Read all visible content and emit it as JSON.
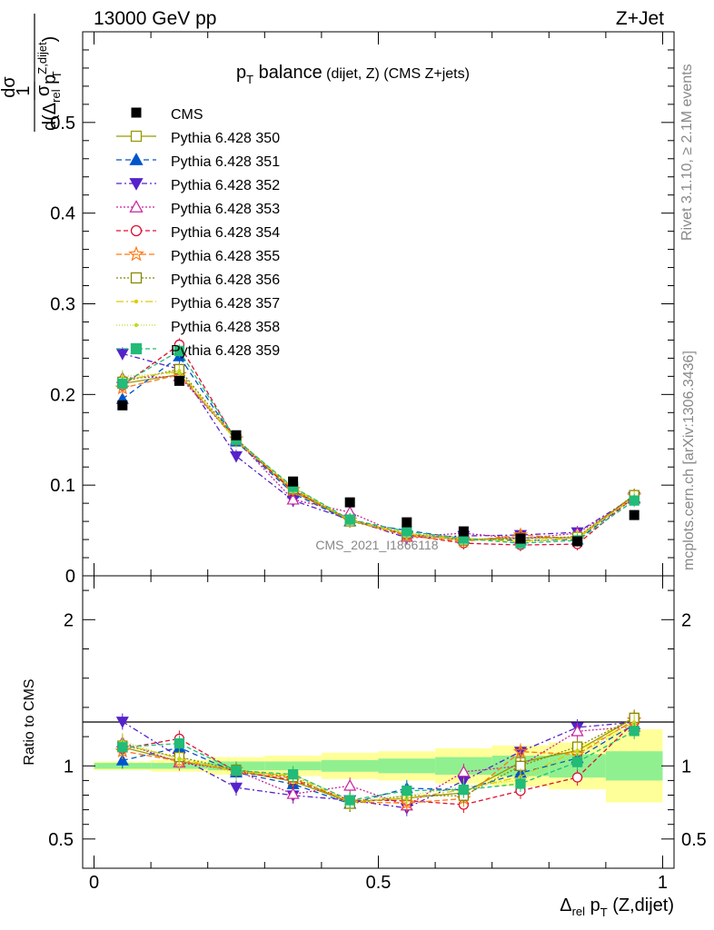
{
  "header": {
    "left": "13000 GeV pp",
    "right": "Z+Jet"
  },
  "plot_title": {
    "main": "p",
    "main_sub": "T",
    "rest": " balance",
    "small": " (dijet, Z) (CMS Z+jets)"
  },
  "ylabel": {
    "frac_top": "1",
    "frac_bottom": "σ",
    "d_sigma": "dσ",
    "d_prefix": "d(Δ",
    "d_sub": "rel",
    "d_p": " p",
    "d_sup": "Z,dijet",
    "d_psub": "T",
    "d_close": ")"
  },
  "ratio_ylabel": "Ratio to CMS",
  "xlabel": {
    "delta": "Δ",
    "sub": "rel",
    "p": " p",
    "psub": "T",
    "rest": " (Z,dijet)"
  },
  "side_texts": {
    "rivet": "Rivet 3.1.10, ≥ 2.1M events",
    "mcplots": "mcplots.cern.ch [arXiv:1306.3436]"
  },
  "watermark": "CMS_2021_I1866118",
  "colors": {
    "cms": "#000000",
    "band_inner": "#90f090",
    "band_outer": "#ffff99"
  },
  "chart_data": {
    "type": "scatter",
    "x": [
      0.05,
      0.15,
      0.25,
      0.35,
      0.45,
      0.55,
      0.65,
      0.75,
      0.85,
      0.95
    ],
    "xlim": [
      -0.02,
      1.02
    ],
    "xticks": [
      "0",
      "0.5",
      "1"
    ],
    "main_ylim": [
      0,
      0.6
    ],
    "main_yticks": [
      "0",
      "0.1",
      "0.2",
      "0.3",
      "0.4",
      "0.5"
    ],
    "ratio_ylim": [
      0.3,
      2.3
    ],
    "ratio_yticks": [
      "0.5",
      "1",
      "2"
    ],
    "cms": [
      0.188,
      0.215,
      0.155,
      0.104,
      0.081,
      0.059,
      0.049,
      0.041,
      0.038,
      0.067
    ],
    "ratio_band_inner": [
      0.02,
      0.02,
      0.03,
      0.03,
      0.04,
      0.05,
      0.06,
      0.07,
      0.08,
      0.1
    ],
    "ratio_band_outer": [
      0.03,
      0.04,
      0.06,
      0.07,
      0.09,
      0.1,
      0.12,
      0.14,
      0.16,
      0.25
    ],
    "series": [
      {
        "name": "Pythia 6.428 350",
        "marker": "open-square",
        "color": "#999900",
        "dash": "",
        "values": [
          0.212,
          0.222,
          0.15,
          0.093,
          0.061,
          0.046,
          0.04,
          0.042,
          0.042,
          0.089
        ]
      },
      {
        "name": "Pythia 6.428 351",
        "marker": "filled-triangle-up",
        "color": "#0055cc",
        "dash": "6,4",
        "values": [
          0.195,
          0.242,
          0.148,
          0.091,
          0.06,
          0.05,
          0.041,
          0.039,
          0.04,
          0.086
        ]
      },
      {
        "name": "Pythia 6.428 352",
        "marker": "filled-triangle-down",
        "color": "#5522cc",
        "dash": "6,3,2,3",
        "values": [
          0.245,
          0.228,
          0.132,
          0.083,
          0.062,
          0.042,
          0.044,
          0.045,
          0.048,
          0.087
        ]
      },
      {
        "name": "Pythia 6.428 353",
        "marker": "open-triangle-up",
        "color": "#cc2299",
        "dash": "2,2",
        "values": [
          0.218,
          0.22,
          0.15,
          0.084,
          0.07,
          0.043,
          0.047,
          0.041,
          0.047,
          0.085
        ]
      },
      {
        "name": "Pythia 6.428 354",
        "marker": "open-circle",
        "color": "#dd1133",
        "dash": "5,3",
        "values": [
          0.21,
          0.255,
          0.149,
          0.094,
          0.062,
          0.045,
          0.036,
          0.034,
          0.035,
          0.087
        ]
      },
      {
        "name": "Pythia 6.428 355",
        "marker": "open-star",
        "color": "#ff7711",
        "dash": "6,3",
        "values": [
          0.207,
          0.222,
          0.151,
          0.095,
          0.061,
          0.044,
          0.038,
          0.045,
          0.041,
          0.088
        ]
      },
      {
        "name": "Pythia 6.428 356",
        "marker": "open-square",
        "color": "#888800",
        "dash": "2,2",
        "values": [
          0.214,
          0.228,
          0.151,
          0.096,
          0.06,
          0.047,
          0.039,
          0.041,
          0.043,
          0.089
        ]
      },
      {
        "name": "Pythia 6.428 357",
        "marker": "small-dot",
        "color": "#ddcc00",
        "dash": "8,3,2,3",
        "values": [
          0.216,
          0.226,
          0.149,
          0.097,
          0.061,
          0.046,
          0.041,
          0.038,
          0.042,
          0.087
        ]
      },
      {
        "name": "Pythia 6.428 358",
        "marker": "small-dot",
        "color": "#bbdd22",
        "dash": "1,2",
        "values": [
          0.22,
          0.224,
          0.148,
          0.098,
          0.062,
          0.047,
          0.042,
          0.037,
          0.041,
          0.086
        ]
      },
      {
        "name": "Pythia 6.428 359",
        "marker": "filled-square",
        "color": "#22bb77",
        "dash": "5,3",
        "values": [
          0.212,
          0.248,
          0.15,
          0.098,
          0.062,
          0.049,
          0.041,
          0.036,
          0.039,
          0.083
        ]
      }
    ]
  }
}
